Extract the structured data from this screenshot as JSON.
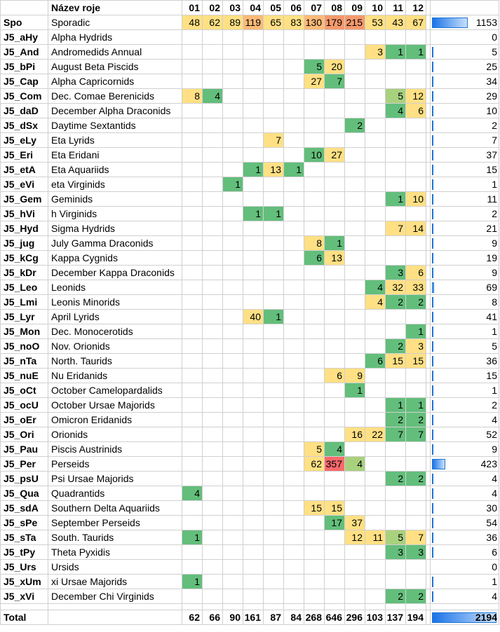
{
  "header": {
    "code": "",
    "name": "Název roje",
    "months": [
      "01",
      "02",
      "03",
      "04",
      "05",
      "06",
      "07",
      "08",
      "09",
      "10",
      "11",
      "12"
    ],
    "total": ""
  },
  "rows": [
    {
      "code": "Spo",
      "name": "Sporadic",
      "m": [
        48,
        62,
        89,
        119,
        65,
        83,
        130,
        179,
        215,
        53,
        43,
        67
      ],
      "total": 1153
    },
    {
      "code": "J5_aHy",
      "name": "Alpha Hydrids",
      "m": [
        null,
        null,
        null,
        null,
        null,
        null,
        null,
        null,
        null,
        null,
        null,
        null
      ],
      "total": 0
    },
    {
      "code": "J5_And",
      "name": "Andromedids Annual",
      "m": [
        null,
        null,
        null,
        null,
        null,
        null,
        null,
        null,
        null,
        3,
        1,
        1
      ],
      "total": 5
    },
    {
      "code": "J5_bPi",
      "name": "August Beta Piscids",
      "m": [
        null,
        null,
        null,
        null,
        null,
        null,
        5,
        20,
        null,
        null,
        null,
        null
      ],
      "total": 25
    },
    {
      "code": "J5_Cap",
      "name": "Alpha Capricornids",
      "m": [
        null,
        null,
        null,
        null,
        null,
        null,
        27,
        7,
        null,
        null,
        null,
        null
      ],
      "total": 34
    },
    {
      "code": "J5_Com",
      "name": "Dec. Comae Berenicids",
      "m": [
        8,
        4,
        null,
        null,
        null,
        null,
        null,
        null,
        null,
        null,
        5,
        12
      ],
      "total": 29
    },
    {
      "code": "J5_daD",
      "name": "December Alpha Draconids",
      "m": [
        null,
        null,
        null,
        null,
        null,
        null,
        null,
        null,
        null,
        null,
        4,
        6
      ],
      "total": 10
    },
    {
      "code": "J5_dSx",
      "name": "Daytime Sextantids",
      "m": [
        null,
        null,
        null,
        null,
        null,
        null,
        null,
        null,
        2,
        null,
        null,
        null
      ],
      "total": 2
    },
    {
      "code": "J5_eLy",
      "name": "Eta Lyrids",
      "m": [
        null,
        null,
        null,
        null,
        7,
        null,
        null,
        null,
        null,
        null,
        null,
        null
      ],
      "total": 7
    },
    {
      "code": "J5_Eri",
      "name": "Eta Eridani",
      "m": [
        null,
        null,
        null,
        null,
        null,
        null,
        10,
        27,
        null,
        null,
        null,
        null
      ],
      "total": 37
    },
    {
      "code": "J5_etA",
      "name": "Eta Aquariids",
      "m": [
        null,
        null,
        null,
        1,
        13,
        1,
        null,
        null,
        null,
        null,
        null,
        null
      ],
      "total": 15
    },
    {
      "code": "J5_eVi",
      "name": "eta Virginids",
      "m": [
        null,
        null,
        1,
        null,
        null,
        null,
        null,
        null,
        null,
        null,
        null,
        null
      ],
      "total": 1
    },
    {
      "code": "J5_Gem",
      "name": "Geminids",
      "m": [
        null,
        null,
        null,
        null,
        null,
        null,
        null,
        null,
        null,
        null,
        1,
        10
      ],
      "total": 11
    },
    {
      "code": "J5_hVi",
      "name": "h Virginids",
      "m": [
        null,
        null,
        null,
        1,
        1,
        null,
        null,
        null,
        null,
        null,
        null,
        null
      ],
      "total": 2
    },
    {
      "code": "J5_Hyd",
      "name": "Sigma Hydrids",
      "m": [
        null,
        null,
        null,
        null,
        null,
        null,
        null,
        null,
        null,
        null,
        7,
        14
      ],
      "total": 21
    },
    {
      "code": "J5_jug",
      "name": "July Gamma Draconids",
      "m": [
        null,
        null,
        null,
        null,
        null,
        null,
        8,
        1,
        null,
        null,
        null,
        null
      ],
      "total": 9
    },
    {
      "code": "J5_kCg",
      "name": "Kappa Cygnids",
      "m": [
        null,
        null,
        null,
        null,
        null,
        null,
        6,
        13,
        null,
        null,
        null,
        null
      ],
      "total": 19
    },
    {
      "code": "J5_kDr",
      "name": "December Kappa Draconids",
      "m": [
        null,
        null,
        null,
        null,
        null,
        null,
        null,
        null,
        null,
        null,
        3,
        6
      ],
      "total": 9
    },
    {
      "code": "J5_Leo",
      "name": "Leonids",
      "m": [
        null,
        null,
        null,
        null,
        null,
        null,
        null,
        null,
        null,
        4,
        32,
        33
      ],
      "total": 69
    },
    {
      "code": "J5_Lmi",
      "name": "Leonis Minorids",
      "m": [
        null,
        null,
        null,
        null,
        null,
        null,
        null,
        null,
        null,
        4,
        2,
        2
      ],
      "total": 8
    },
    {
      "code": "J5_Lyr",
      "name": "April Lyrids",
      "m": [
        null,
        null,
        null,
        40,
        1,
        null,
        null,
        null,
        null,
        null,
        null,
        null
      ],
      "total": 41
    },
    {
      "code": "J5_Mon",
      "name": "Dec. Monocerotids",
      "m": [
        null,
        null,
        null,
        null,
        null,
        null,
        null,
        null,
        null,
        null,
        null,
        1
      ],
      "total": 1
    },
    {
      "code": "J5_noO",
      "name": "Nov. Orionids",
      "m": [
        null,
        null,
        null,
        null,
        null,
        null,
        null,
        null,
        null,
        null,
        2,
        3
      ],
      "total": 5
    },
    {
      "code": "J5_nTa",
      "name": "North. Taurids",
      "m": [
        null,
        null,
        null,
        null,
        null,
        null,
        null,
        null,
        null,
        6,
        15,
        15
      ],
      "total": 36
    },
    {
      "code": "J5_nuE",
      "name": "Nu Eridanids",
      "m": [
        null,
        null,
        null,
        null,
        null,
        null,
        null,
        6,
        9,
        null,
        null,
        null
      ],
      "total": 15
    },
    {
      "code": "J5_oCt",
      "name": "October Camelopardalids",
      "m": [
        null,
        null,
        null,
        null,
        null,
        null,
        null,
        null,
        1,
        null,
        null,
        null
      ],
      "total": 1
    },
    {
      "code": "J5_ocU",
      "name": "October Ursae Majorids",
      "m": [
        null,
        null,
        null,
        null,
        null,
        null,
        null,
        null,
        null,
        null,
        1,
        1
      ],
      "total": 2
    },
    {
      "code": "J5_oEr",
      "name": "Omicron Eridanids",
      "m": [
        null,
        null,
        null,
        null,
        null,
        null,
        null,
        null,
        null,
        null,
        2,
        2
      ],
      "total": 4
    },
    {
      "code": "J5_Ori",
      "name": "Orionids",
      "m": [
        null,
        null,
        null,
        null,
        null,
        null,
        null,
        null,
        16,
        22,
        7,
        7
      ],
      "total": 52
    },
    {
      "code": "J5_Pau",
      "name": "Piscis Austrinids",
      "m": [
        null,
        null,
        null,
        null,
        null,
        null,
        5,
        4,
        null,
        null,
        null,
        null
      ],
      "total": 9
    },
    {
      "code": "J5_Per",
      "name": "Perseids",
      "m": [
        null,
        null,
        null,
        null,
        null,
        null,
        62,
        357,
        4,
        null,
        null,
        null
      ],
      "total": 423
    },
    {
      "code": "J5_psU",
      "name": "Psi Ursae Majorids",
      "m": [
        null,
        null,
        null,
        null,
        null,
        null,
        null,
        null,
        null,
        null,
        2,
        2
      ],
      "total": 4
    },
    {
      "code": "J5_Qua",
      "name": "Quadrantids",
      "m": [
        4,
        null,
        null,
        null,
        null,
        null,
        null,
        null,
        null,
        null,
        null,
        null
      ],
      "total": 4
    },
    {
      "code": "J5_sdA",
      "name": "Southern Delta Aquariids",
      "m": [
        null,
        null,
        null,
        null,
        null,
        null,
        15,
        15,
        null,
        null,
        null,
        null
      ],
      "total": 30
    },
    {
      "code": "J5_sPe",
      "name": "September Perseids",
      "m": [
        null,
        null,
        null,
        null,
        null,
        null,
        null,
        17,
        37,
        null,
        null,
        null
      ],
      "total": 54
    },
    {
      "code": "J5_sTa",
      "name": "South. Taurids",
      "m": [
        1,
        null,
        null,
        null,
        null,
        null,
        null,
        null,
        12,
        11,
        5,
        7
      ],
      "total": 36
    },
    {
      "code": "J5_tPy",
      "name": "Theta Pyxidis",
      "m": [
        null,
        null,
        null,
        null,
        null,
        null,
        null,
        null,
        null,
        null,
        3,
        3
      ],
      "total": 6
    },
    {
      "code": "J5_Urs",
      "name": "Ursids",
      "m": [
        null,
        null,
        null,
        null,
        null,
        null,
        null,
        null,
        null,
        null,
        null,
        null
      ],
      "total": 0
    },
    {
      "code": "J5_xUm",
      "name": "xi Ursae Majorids",
      "m": [
        1,
        null,
        null,
        null,
        null,
        null,
        null,
        null,
        null,
        null,
        null,
        null
      ],
      "total": 1
    },
    {
      "code": "J5_xVi",
      "name": "December Chi Virginids",
      "m": [
        null,
        null,
        null,
        null,
        null,
        null,
        null,
        null,
        null,
        null,
        2,
        2
      ],
      "total": 4
    }
  ],
  "footer": {
    "label": "Total",
    "m": [
      62,
      66,
      90,
      161,
      87,
      84,
      268,
      646,
      296,
      103,
      137,
      194
    ],
    "total": 2194
  },
  "colors": {
    "green": "#63be7b",
    "yellow": "#ffe084",
    "red": "#f8696b",
    "bar": "#1a73e8",
    "grid": "#d0d0d0"
  }
}
